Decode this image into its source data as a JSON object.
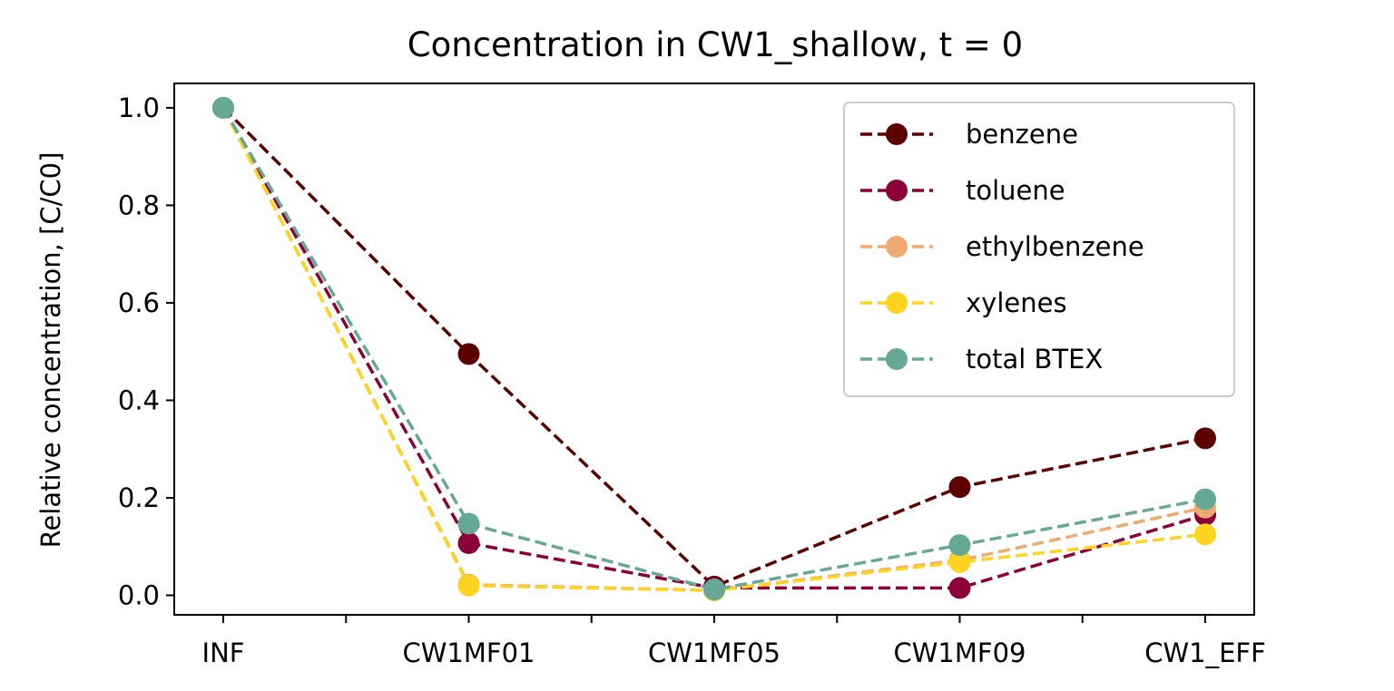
{
  "chart_data": {
    "type": "line",
    "title": "Concentration in CW1_shallow, t = 0",
    "xlabel": "",
    "ylabel": "Relative concentration, [C/C0]",
    "categories": [
      "INF",
      "CW1MF01",
      "CW1MF05",
      "CW1MF09",
      "CW1_EFF"
    ],
    "ylim": [
      -0.04,
      1.05
    ],
    "yticks": [
      0.0,
      0.2,
      0.4,
      0.6,
      0.8,
      1.0
    ],
    "ytick_labels": [
      "0.0",
      "0.2",
      "0.4",
      "0.6",
      "0.8",
      "1.0"
    ],
    "grid": false,
    "legend_position": "top-right",
    "line_style": "dashed",
    "series": [
      {
        "name": "benzene",
        "color": "#5c0000",
        "values": [
          1.0,
          0.495,
          0.018,
          0.222,
          0.322
        ]
      },
      {
        "name": "toluene",
        "color": "#8b0038",
        "values": [
          1.0,
          0.107,
          0.015,
          0.015,
          0.165
        ]
      },
      {
        "name": "ethylbenzene",
        "color": "#f0aa70",
        "values": [
          1.0,
          0.022,
          0.01,
          0.072,
          0.18
        ]
      },
      {
        "name": "xylenes",
        "color": "#fed420",
        "values": [
          1.0,
          0.02,
          0.01,
          0.068,
          0.125
        ]
      },
      {
        "name": "total BTEX",
        "color": "#66a896",
        "values": [
          1.0,
          0.147,
          0.012,
          0.103,
          0.197
        ]
      }
    ]
  }
}
